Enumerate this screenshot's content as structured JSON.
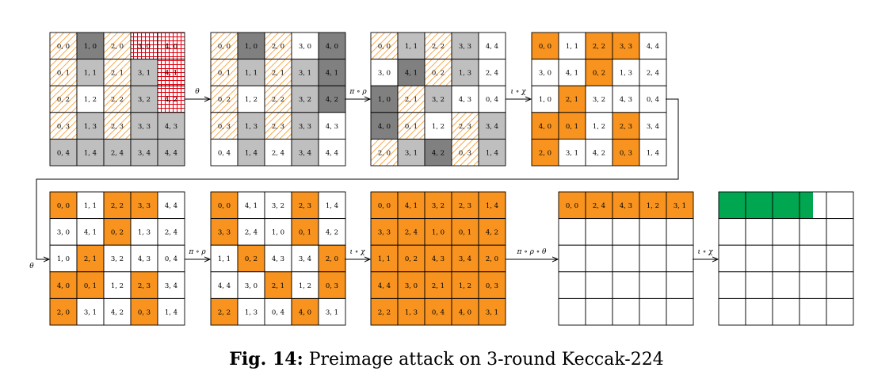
{
  "colors": {
    "orange": "#F7931E",
    "dark_gray": "#808080",
    "light_gray": "#BFBFBF",
    "white": "#FFFFFF",
    "green": "#00A650",
    "hatch": "#F7931E",
    "grid_red": "#E3000F"
  },
  "caption": {
    "label": "Fig. 14:",
    "text": "Preimage attack on 3-round Keccak-224"
  },
  "arrows": {
    "a1": "θ",
    "a2": "π ∘ ρ",
    "a3": "ι ∘ χ",
    "a4": "θ",
    "a5": "π ∘ ρ",
    "a6": "ι ∘ χ",
    "a7": "π ∘ ρ ∘ θ",
    "a8": "ι ∘ χ"
  },
  "states": [
    {
      "id": "s1",
      "labels": [
        [
          "0, 0",
          "1, 0",
          "2, 0",
          "3, 0",
          "4, 0"
        ],
        [
          "0, 1",
          "1, 1",
          "2, 1",
          "3, 1",
          "4, 1"
        ],
        [
          "0, 2",
          "1, 2",
          "2, 2",
          "3, 2",
          "4, 2"
        ],
        [
          "0, 3",
          "1, 3",
          "2, 3",
          "3, 3",
          "4, 3"
        ],
        [
          "0, 4",
          "1, 4",
          "2, 4",
          "3, 4",
          "4, 4"
        ]
      ],
      "styles": [
        [
          "H",
          "D",
          "H",
          "R",
          "R"
        ],
        [
          "H",
          "L",
          "H",
          "L",
          "R"
        ],
        [
          "H",
          "W",
          "H",
          "L",
          "R"
        ],
        [
          "H",
          "L",
          "H",
          "L",
          "L"
        ],
        [
          "L",
          "L",
          "L",
          "L",
          "L"
        ]
      ]
    },
    {
      "id": "s2",
      "labels": [
        [
          "0, 0",
          "1, 0",
          "2, 0",
          "3, 0",
          "4, 0"
        ],
        [
          "0, 1",
          "1, 1",
          "2, 1",
          "3, 1",
          "4, 1"
        ],
        [
          "0, 2",
          "1, 2",
          "2, 2",
          "3, 2",
          "4, 2"
        ],
        [
          "0, 3",
          "1, 3",
          "2, 3",
          "3, 3",
          "4, 3"
        ],
        [
          "0, 4",
          "1, 4",
          "2, 4",
          "3, 4",
          "4, 4"
        ]
      ],
      "styles": [
        [
          "H",
          "D",
          "H",
          "W",
          "D"
        ],
        [
          "H",
          "L",
          "H",
          "L",
          "D"
        ],
        [
          "H",
          "W",
          "H",
          "L",
          "D"
        ],
        [
          "H",
          "L",
          "H",
          "L",
          "W"
        ],
        [
          "W",
          "L",
          "W",
          "L",
          "W"
        ]
      ]
    },
    {
      "id": "s3",
      "labels": [
        [
          "0, 0",
          "1, 1",
          "2, 2",
          "3, 3",
          "4, 4"
        ],
        [
          "3, 0",
          "4, 1",
          "0, 2",
          "1, 3",
          "2, 4"
        ],
        [
          "1, 0",
          "2, 1",
          "3, 2",
          "4, 3",
          "0, 4"
        ],
        [
          "4, 0",
          "0, 1",
          "1, 2",
          "2, 3",
          "3, 4"
        ],
        [
          "2, 0",
          "3, 1",
          "4, 2",
          "0, 3",
          "1, 4"
        ]
      ],
      "styles": [
        [
          "H",
          "L",
          "H",
          "L",
          "W"
        ],
        [
          "W",
          "D",
          "H",
          "L",
          "W"
        ],
        [
          "D",
          "H",
          "L",
          "W",
          "W"
        ],
        [
          "D",
          "H",
          "W",
          "H",
          "L"
        ],
        [
          "H",
          "L",
          "D",
          "H",
          "L"
        ]
      ]
    },
    {
      "id": "s4",
      "labels": [
        [
          "0, 0",
          "1, 1",
          "2, 2",
          "3, 3",
          "4, 4"
        ],
        [
          "3, 0",
          "4, 1",
          "0, 2",
          "1, 3",
          "2, 4"
        ],
        [
          "1, 0",
          "2, 1",
          "3, 2",
          "4, 3",
          "0, 4"
        ],
        [
          "4, 0",
          "0, 1",
          "1, 2",
          "2, 3",
          "3, 4"
        ],
        [
          "2, 0",
          "3, 1",
          "4, 2",
          "0, 3",
          "1, 4"
        ]
      ],
      "styles": [
        [
          "O",
          "W",
          "O",
          "O",
          "W"
        ],
        [
          "W",
          "W",
          "O",
          "W",
          "W"
        ],
        [
          "W",
          "O",
          "W",
          "W",
          "W"
        ],
        [
          "O",
          "O",
          "W",
          "O",
          "W"
        ],
        [
          "O",
          "W",
          "W",
          "O",
          "W"
        ]
      ]
    },
    {
      "id": "s5",
      "labels": [
        [
          "0, 0",
          "1, 1",
          "2, 2",
          "3, 3",
          "4, 4"
        ],
        [
          "3, 0",
          "4, 1",
          "0, 2",
          "1, 3",
          "2, 4"
        ],
        [
          "1, 0",
          "2, 1",
          "3, 2",
          "4, 3",
          "0, 4"
        ],
        [
          "4, 0",
          "0, 1",
          "1, 2",
          "2, 3",
          "3, 4"
        ],
        [
          "2, 0",
          "3, 1",
          "4, 2",
          "0, 3",
          "1, 4"
        ]
      ],
      "styles": [
        [
          "O",
          "W",
          "O",
          "O",
          "W"
        ],
        [
          "W",
          "W",
          "O",
          "W",
          "W"
        ],
        [
          "W",
          "O",
          "W",
          "W",
          "W"
        ],
        [
          "O",
          "O",
          "W",
          "O",
          "W"
        ],
        [
          "O",
          "W",
          "W",
          "O",
          "W"
        ]
      ]
    },
    {
      "id": "s6",
      "labels": [
        [
          "0, 0",
          "4, 1",
          "3, 2",
          "2, 3",
          "1, 4"
        ],
        [
          "3, 3",
          "2, 4",
          "1, 0",
          "0, 1",
          "4, 2"
        ],
        [
          "1, 1",
          "0, 2",
          "4, 3",
          "3, 4",
          "2, 0"
        ],
        [
          "4, 4",
          "3, 0",
          "2, 1",
          "1, 2",
          "0, 3"
        ],
        [
          "2, 2",
          "1, 3",
          "0, 4",
          "4, 0",
          "3, 1"
        ]
      ],
      "styles": [
        [
          "O",
          "W",
          "W",
          "O",
          "W"
        ],
        [
          "O",
          "W",
          "W",
          "O",
          "W"
        ],
        [
          "W",
          "O",
          "W",
          "W",
          "O"
        ],
        [
          "W",
          "W",
          "O",
          "W",
          "O"
        ],
        [
          "O",
          "W",
          "W",
          "O",
          "W"
        ]
      ]
    },
    {
      "id": "s7",
      "labels": [
        [
          "0, 0",
          "4, 1",
          "3, 2",
          "2, 3",
          "1, 4"
        ],
        [
          "3, 3",
          "2, 4",
          "1, 0",
          "0, 1",
          "4, 2"
        ],
        [
          "1, 1",
          "0, 2",
          "4, 3",
          "3, 4",
          "2, 0"
        ],
        [
          "4, 4",
          "3, 0",
          "2, 1",
          "1, 2",
          "0, 3"
        ],
        [
          "2, 2",
          "1, 3",
          "0, 4",
          "4, 0",
          "3, 1"
        ]
      ],
      "styles": [
        [
          "O",
          "O",
          "O",
          "O",
          "O"
        ],
        [
          "O",
          "O",
          "O",
          "O",
          "O"
        ],
        [
          "O",
          "O",
          "O",
          "O",
          "O"
        ],
        [
          "O",
          "O",
          "O",
          "O",
          "O"
        ],
        [
          "O",
          "O",
          "O",
          "O",
          "O"
        ]
      ]
    },
    {
      "id": "s8",
      "labels": [
        [
          "0, 0",
          "2, 4",
          "4, 3",
          "1, 2",
          "3, 1"
        ],
        [
          "",
          "",
          "",
          "",
          ""
        ],
        [
          "",
          "",
          "",
          "",
          ""
        ],
        [
          "",
          "",
          "",
          "",
          ""
        ],
        [
          "",
          "",
          "",
          "",
          ""
        ]
      ],
      "styles": [
        [
          "O",
          "O",
          "O",
          "O",
          "O"
        ],
        [
          "W",
          "W",
          "W",
          "W",
          "W"
        ],
        [
          "W",
          "W",
          "W",
          "W",
          "W"
        ],
        [
          "W",
          "W",
          "W",
          "W",
          "W"
        ],
        [
          "W",
          "W",
          "W",
          "W",
          "W"
        ]
      ]
    },
    {
      "id": "s9",
      "labels": [
        [
          "",
          "",
          "",
          "",
          ""
        ],
        [
          "",
          "",
          "",
          "",
          ""
        ],
        [
          "",
          "",
          "",
          "",
          ""
        ],
        [
          "",
          "",
          "",
          "",
          ""
        ],
        [
          "",
          "",
          "",
          "",
          ""
        ]
      ],
      "styles": [
        [
          "G",
          "G",
          "G",
          "GP",
          "W"
        ],
        [
          "W",
          "W",
          "W",
          "W",
          "W"
        ],
        [
          "W",
          "W",
          "W",
          "W",
          "W"
        ],
        [
          "W",
          "W",
          "W",
          "W",
          "W"
        ],
        [
          "W",
          "W",
          "W",
          "W",
          "W"
        ]
      ],
      "green_partial_fraction": 0.5
    }
  ]
}
